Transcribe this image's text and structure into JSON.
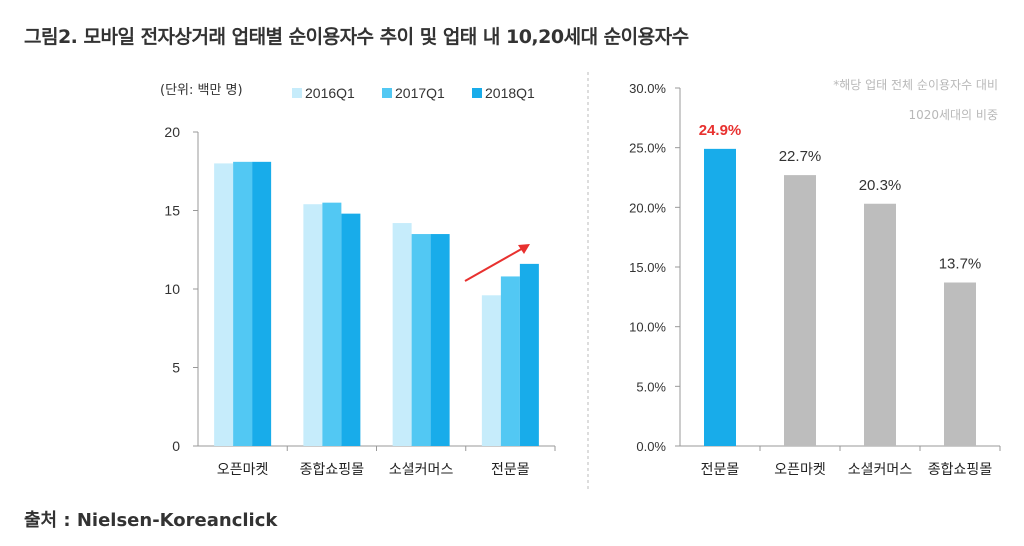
{
  "title": "그림2. 모바일 전자상거래 업태별 순이용자수 추이 및 업태 내 10,20세대 순이용자수",
  "source": "출처 : Nielsen-Koreanclick",
  "colors": {
    "s2016": "#c6ecfb",
    "s2017": "#52c8f3",
    "s2018": "#18acea",
    "highlight": "#18acea",
    "gray": "#bdbdbd",
    "red": "#e8312f",
    "arrow": "#e8312f"
  },
  "chart_data": [
    {
      "type": "bar",
      "unit_label": "(단위: 백만 명)",
      "categories": [
        "오픈마켓",
        "종합쇼핑몰",
        "소셜커머스",
        "전문몰"
      ],
      "series": [
        {
          "name": "2016Q1",
          "values": [
            18.0,
            15.4,
            14.2,
            9.6
          ]
        },
        {
          "name": "2017Q1",
          "values": [
            18.1,
            15.5,
            13.5,
            10.8
          ]
        },
        {
          "name": "2018Q1",
          "values": [
            18.1,
            14.8,
            13.5,
            11.6
          ]
        }
      ],
      "ylim": [
        0,
        20
      ],
      "yticks": [
        "0",
        "5",
        "10",
        "15",
        "20"
      ],
      "legend": "top"
    },
    {
      "type": "bar",
      "note_line1": "*해당 업태 전체 순이용자수 대비",
      "note_line2": "1020세대의 비중",
      "categories": [
        "전문몰",
        "오픈마켓",
        "소셜커머스",
        "종합쇼핑몰"
      ],
      "values": [
        24.9,
        22.7,
        20.3,
        13.7
      ],
      "labels": [
        "24.9%",
        "22.7%",
        "20.3%",
        "13.7%"
      ],
      "ylim": [
        0,
        30
      ],
      "yticks": [
        "0.0%",
        "5.0%",
        "10.0%",
        "15.0%",
        "20.0%",
        "25.0%",
        "30.0%"
      ]
    }
  ]
}
